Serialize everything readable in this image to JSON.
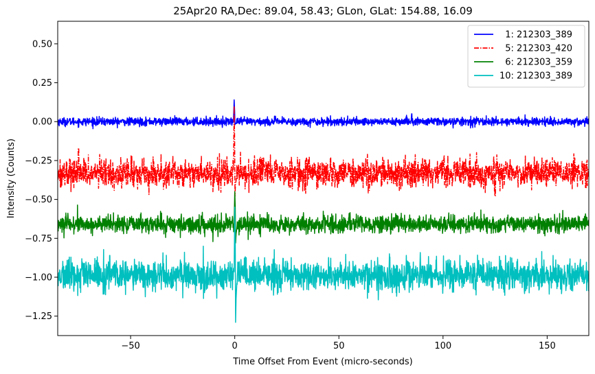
{
  "chart_data": {
    "type": "line",
    "title": "25Apr20 RA,Dec:   89.04,  58.43; GLon, GLat:  154.88,  16.09",
    "xlabel": "Time Offset From Event (micro-seconds)",
    "ylabel": "Intensity (Counts)",
    "xlim": [
      -85,
      170
    ],
    "ylim": [
      -1.375,
      0.645
    ],
    "xticks": [
      -50,
      0,
      50,
      100,
      150
    ],
    "xtick_labels": [
      "−50",
      "0",
      "50",
      "100",
      "150"
    ],
    "yticks": [
      0.5,
      0.25,
      0.0,
      -0.25,
      -0.5,
      -0.75,
      -1.0,
      -1.25
    ],
    "ytick_labels": [
      "0.50",
      "0.25",
      "0.00",
      "−0.25",
      "−0.50",
      "−0.75",
      "−1.00",
      "−1.25"
    ],
    "grid": false,
    "legend_position": "top-right",
    "series": [
      {
        "name": "1: 212303_389",
        "legend_label": "  1: 212303_389",
        "color": "#0000ff",
        "dash": "solid",
        "baseline": 0.0,
        "noise": 0.013,
        "spike": {
          "x": 0.0,
          "peak": 0.14,
          "min": -0.02
        },
        "spurs": [
          {
            "x": 85.0,
            "y": 0.05
          }
        ]
      },
      {
        "name": "5: 212303_420",
        "legend_label": "  5: 212303_420",
        "color": "#ff0000",
        "dash": "dashdot",
        "baseline": -0.33,
        "noise": 0.045,
        "spike": {
          "x": 0.0,
          "peak": 0.1,
          "min": -0.48
        },
        "spurs": [
          {
            "x": -75.0,
            "y": -0.17
          },
          {
            "x": 125.0,
            "y": -0.48
          }
        ]
      },
      {
        "name": "6: 212303_359",
        "legend_label": "  6: 212303_359",
        "color": "#008000",
        "dash": "solid",
        "baseline": -0.66,
        "noise": 0.028,
        "spike": {
          "x": 0.3,
          "peak": -0.45,
          "min": -0.78
        },
        "spurs": []
      },
      {
        "name": "10: 212303_389",
        "legend_label": "10: 212303_389",
        "color": "#00bfbf",
        "dash": "solid",
        "baseline": -0.99,
        "noise": 0.05,
        "spike": {
          "x": 0.3,
          "peak": -0.55,
          "min": -1.29
        },
        "spurs": [
          {
            "x": -60.0,
            "y": -0.86
          }
        ]
      }
    ]
  }
}
